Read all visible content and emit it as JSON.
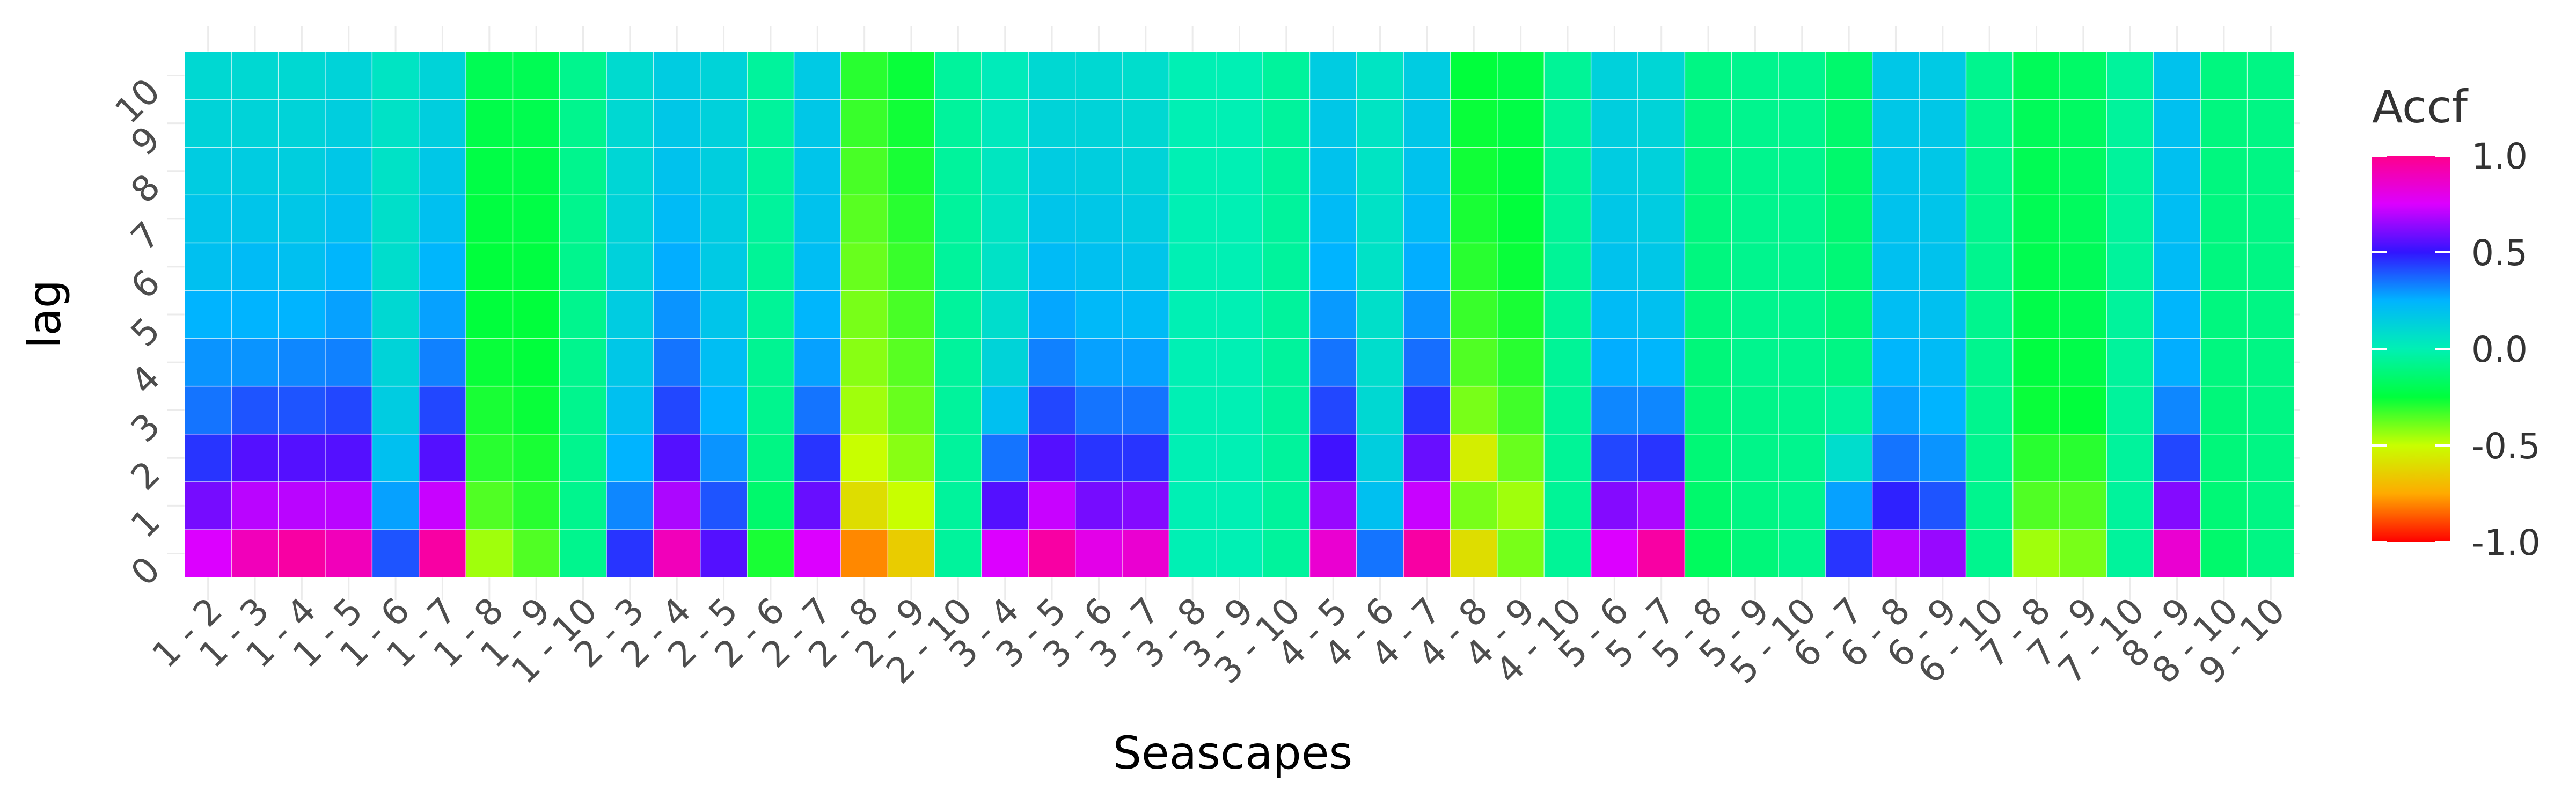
{
  "chart_data": {
    "type": "heatmap",
    "title": "",
    "xlabel": "Seascapes",
    "ylabel": "lag",
    "legend_title": "Accf",
    "legend_ticks": [
      "1.0",
      "0.5",
      "0.0",
      "-0.5",
      "-1.0"
    ],
    "legend_tick_values": [
      1.0,
      0.5,
      0.0,
      -0.5,
      -1.0
    ],
    "value_range": [
      -1,
      1
    ],
    "colormap": "rainbow",
    "grid": true,
    "legend_position": "right",
    "x_categories": [
      "1 - 2",
      "1 - 3",
      "1 - 4",
      "1 - 5",
      "1 - 6",
      "1 - 7",
      "1 - 8",
      "1 - 9",
      "1 - 10",
      "2 - 3",
      "2 - 4",
      "2 - 5",
      "2 - 6",
      "2 - 7",
      "2 - 8",
      "2 - 9",
      "2 - 10",
      "3 - 4",
      "3 - 5",
      "3 - 6",
      "3 - 7",
      "3 - 8",
      "3 - 9",
      "3 - 10",
      "4 - 5",
      "4 - 6",
      "4 - 7",
      "4 - 8",
      "4 - 9",
      "4 - 10",
      "5 - 6",
      "5 - 7",
      "5 - 8",
      "5 - 9",
      "5 - 10",
      "6 - 7",
      "6 - 8",
      "6 - 9",
      "6 - 10",
      "7 - 8",
      "7 - 9",
      "7 - 10",
      "8 - 9",
      "8 - 10",
      "9 - 10"
    ],
    "y_categories": [
      "0",
      "1",
      "2",
      "3",
      "4",
      "5",
      "6",
      "7",
      "8",
      "9",
      "10"
    ],
    "values": [
      [
        0.75,
        0.6,
        0.45,
        0.35,
        0.3,
        0.25,
        0.2,
        0.18,
        0.15,
        0.12,
        0.1
      ],
      [
        0.9,
        0.7,
        0.55,
        0.4,
        0.3,
        0.25,
        0.22,
        0.18,
        0.15,
        0.12,
        0.1
      ],
      [
        0.95,
        0.7,
        0.55,
        0.4,
        0.32,
        0.25,
        0.2,
        0.17,
        0.14,
        0.12,
        0.1
      ],
      [
        0.9,
        0.7,
        0.55,
        0.42,
        0.33,
        0.28,
        0.24,
        0.2,
        0.17,
        0.14,
        0.12
      ],
      [
        0.4,
        0.28,
        0.2,
        0.15,
        0.12,
        0.1,
        0.08,
        0.07,
        0.06,
        0.06,
        0.05
      ],
      [
        0.95,
        0.72,
        0.55,
        0.42,
        0.33,
        0.28,
        0.24,
        0.2,
        0.17,
        0.14,
        0.12
      ],
      [
        -0.45,
        -0.35,
        -0.3,
        -0.28,
        -0.26,
        -0.25,
        -0.25,
        -0.24,
        -0.23,
        -0.22,
        -0.2
      ],
      [
        -0.35,
        -0.3,
        -0.28,
        -0.26,
        -0.25,
        -0.25,
        -0.24,
        -0.23,
        -0.22,
        -0.21,
        -0.2
      ],
      [
        -0.08,
        -0.08,
        -0.08,
        -0.08,
        -0.08,
        -0.08,
        -0.08,
        -0.08,
        -0.08,
        -0.08,
        -0.08
      ],
      [
        0.45,
        0.32,
        0.25,
        0.2,
        0.17,
        0.15,
        0.13,
        0.12,
        0.11,
        0.1,
        0.09
      ],
      [
        0.9,
        0.68,
        0.55,
        0.42,
        0.35,
        0.3,
        0.26,
        0.22,
        0.19,
        0.17,
        0.15
      ],
      [
        0.55,
        0.4,
        0.3,
        0.25,
        0.21,
        0.18,
        0.16,
        0.15,
        0.14,
        0.13,
        0.12
      ],
      [
        -0.28,
        -0.15,
        -0.1,
        -0.08,
        -0.07,
        -0.06,
        -0.06,
        -0.05,
        -0.05,
        -0.05,
        -0.05
      ],
      [
        0.75,
        0.58,
        0.45,
        0.35,
        0.28,
        0.24,
        0.21,
        0.19,
        0.18,
        0.17,
        0.16
      ],
      [
        -0.8,
        -0.6,
        -0.5,
        -0.45,
        -0.42,
        -0.4,
        -0.38,
        -0.36,
        -0.34,
        -0.32,
        -0.3
      ],
      [
        -0.65,
        -0.5,
        -0.42,
        -0.38,
        -0.36,
        -0.34,
        -0.32,
        -0.3,
        -0.28,
        -0.27,
        -0.26
      ],
      [
        -0.05,
        -0.05,
        -0.05,
        -0.05,
        -0.05,
        -0.05,
        -0.05,
        -0.05,
        -0.05,
        -0.05,
        -0.05
      ],
      [
        0.75,
        0.55,
        0.35,
        0.2,
        0.12,
        0.08,
        0.06,
        0.05,
        0.04,
        0.03,
        0.02
      ],
      [
        0.95,
        0.72,
        0.55,
        0.42,
        0.33,
        0.27,
        0.22,
        0.18,
        0.15,
        0.12,
        0.1
      ],
      [
        0.8,
        0.6,
        0.45,
        0.35,
        0.28,
        0.23,
        0.2,
        0.17,
        0.14,
        0.12,
        0.1
      ],
      [
        0.85,
        0.62,
        0.45,
        0.35,
        0.28,
        0.22,
        0.18,
        0.15,
        0.12,
        0.1,
        0.08
      ],
      [
        0.0,
        0.0,
        0.0,
        0.0,
        0.0,
        0.0,
        0.0,
        0.0,
        0.0,
        0.0,
        0.0
      ],
      [
        0.0,
        0.0,
        0.0,
        0.0,
        0.0,
        0.0,
        0.0,
        0.0,
        0.0,
        0.0,
        0.0
      ],
      [
        -0.05,
        -0.05,
        -0.05,
        -0.05,
        -0.05,
        -0.05,
        -0.05,
        -0.05,
        -0.05,
        -0.05,
        -0.05
      ],
      [
        0.85,
        0.65,
        0.52,
        0.42,
        0.35,
        0.29,
        0.25,
        0.22,
        0.19,
        0.17,
        0.15
      ],
      [
        0.35,
        0.2,
        0.14,
        0.1,
        0.08,
        0.07,
        0.06,
        0.06,
        0.05,
        0.05,
        0.05
      ],
      [
        0.95,
        0.72,
        0.58,
        0.45,
        0.36,
        0.3,
        0.26,
        0.22,
        0.19,
        0.17,
        0.15
      ],
      [
        -0.6,
        -0.4,
        -0.55,
        -0.4,
        -0.35,
        -0.32,
        -0.3,
        -0.28,
        -0.27,
        -0.26,
        -0.25
      ],
      [
        -0.4,
        -0.45,
        -0.38,
        -0.33,
        -0.3,
        -0.28,
        -0.26,
        -0.25,
        -0.24,
        -0.23,
        -0.22
      ],
      [
        -0.06,
        -0.06,
        -0.06,
        -0.06,
        -0.06,
        -0.06,
        -0.06,
        -0.06,
        -0.06,
        -0.06,
        -0.06
      ],
      [
        0.75,
        0.62,
        0.42,
        0.32,
        0.26,
        0.22,
        0.19,
        0.17,
        0.15,
        0.14,
        0.13
      ],
      [
        0.95,
        0.68,
        0.45,
        0.32,
        0.24,
        0.2,
        0.17,
        0.15,
        0.13,
        0.12,
        0.11
      ],
      [
        -0.18,
        -0.15,
        -0.13,
        -0.12,
        -0.12,
        -0.11,
        -0.11,
        -0.11,
        -0.1,
        -0.1,
        -0.1
      ],
      [
        -0.12,
        -0.1,
        -0.09,
        -0.09,
        -0.08,
        -0.08,
        -0.08,
        -0.08,
        -0.08,
        -0.08,
        -0.08
      ],
      [
        -0.08,
        -0.08,
        -0.08,
        -0.08,
        -0.08,
        -0.08,
        -0.08,
        -0.08,
        -0.08,
        -0.08,
        -0.08
      ],
      [
        0.45,
        0.28,
        0.08,
        -0.05,
        -0.1,
        -0.12,
        -0.13,
        -0.14,
        -0.15,
        -0.15,
        -0.15
      ],
      [
        0.7,
        0.48,
        0.35,
        0.28,
        0.24,
        0.21,
        0.2,
        0.19,
        0.18,
        0.17,
        0.17
      ],
      [
        0.65,
        0.4,
        0.3,
        0.25,
        0.22,
        0.2,
        0.19,
        0.18,
        0.17,
        0.17,
        0.16
      ],
      [
        -0.08,
        -0.08,
        -0.08,
        -0.08,
        -0.08,
        -0.08,
        -0.08,
        -0.08,
        -0.08,
        -0.08,
        -0.08
      ],
      [
        -0.45,
        -0.35,
        -0.3,
        -0.26,
        -0.24,
        -0.22,
        -0.21,
        -0.2,
        -0.2,
        -0.19,
        -0.19
      ],
      [
        -0.4,
        -0.35,
        -0.3,
        -0.25,
        -0.22,
        -0.2,
        -0.19,
        -0.18,
        -0.17,
        -0.17,
        -0.16
      ],
      [
        -0.05,
        -0.05,
        -0.05,
        -0.05,
        -0.05,
        -0.05,
        -0.05,
        -0.05,
        -0.05,
        -0.05,
        -0.05
      ],
      [
        0.85,
        0.62,
        0.42,
        0.32,
        0.26,
        0.24,
        0.22,
        0.21,
        0.2,
        0.2,
        0.19
      ],
      [
        -0.15,
        -0.13,
        -0.12,
        -0.12,
        -0.11,
        -0.11,
        -0.11,
        -0.11,
        -0.11,
        -0.11,
        -0.11
      ],
      [
        -0.1,
        -0.1,
        -0.1,
        -0.1,
        -0.1,
        -0.1,
        -0.1,
        -0.1,
        -0.1,
        -0.1,
        -0.1
      ]
    ]
  }
}
